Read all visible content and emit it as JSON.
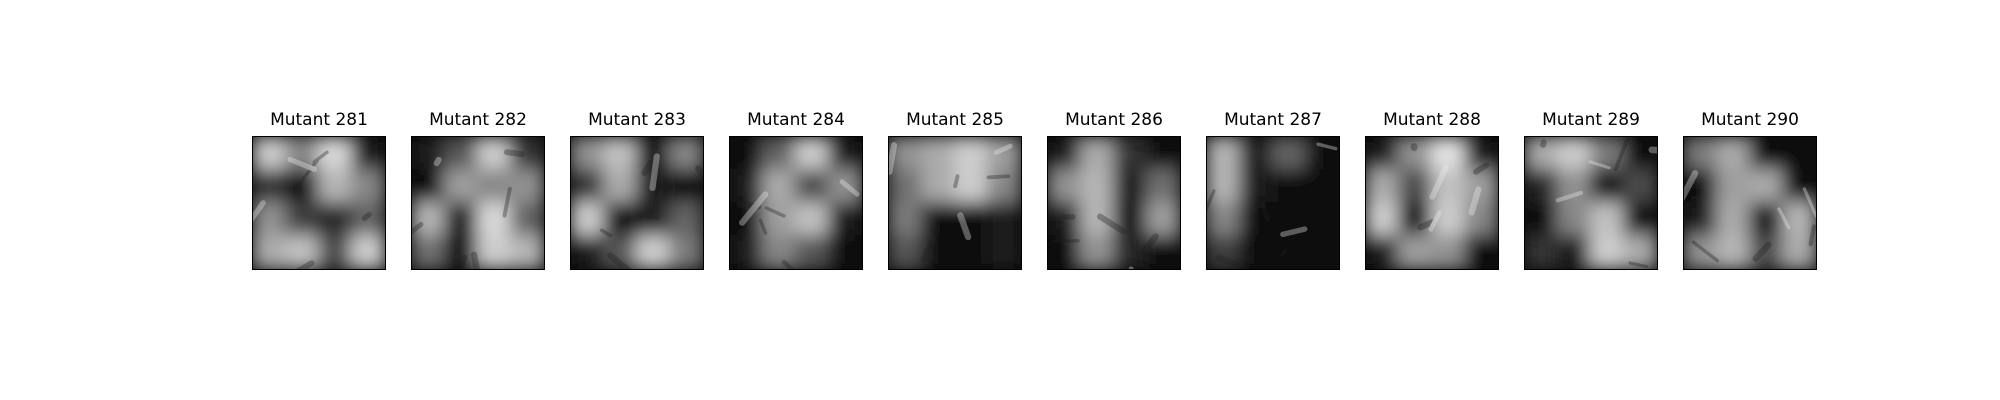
{
  "figure": {
    "panels": [
      {
        "title": "Mutant 281",
        "mask": [
          [
            0.85,
            0.55,
            0.9,
            0.1
          ],
          [
            0.2,
            0.05,
            0.75,
            0.55
          ],
          [
            0.6,
            0.25,
            0.15,
            0.4
          ],
          [
            0.7,
            0.8,
            0.3,
            0.85
          ]
        ]
      },
      {
        "title": "Mutant 282",
        "mask": [
          [
            0.1,
            0.35,
            0.85,
            0.2
          ],
          [
            0.05,
            0.65,
            0.55,
            0.6
          ],
          [
            0.75,
            0.1,
            0.9,
            0.4
          ],
          [
            0.45,
            0.05,
            0.85,
            0.75
          ]
        ]
      },
      {
        "title": "Mutant 283",
        "mask": [
          [
            0.6,
            0.8,
            0.05,
            0.55
          ],
          [
            0.2,
            0.7,
            0.1,
            0.05
          ],
          [
            0.85,
            0.05,
            0.1,
            0.4
          ],
          [
            0.1,
            0.35,
            0.85,
            0.5
          ]
        ]
      },
      {
        "title": "Mutant 284",
        "mask": [
          [
            0.05,
            0.4,
            0.85,
            0.1
          ],
          [
            0.1,
            0.7,
            0.3,
            0.6
          ],
          [
            0.05,
            0.65,
            0.8,
            0.1
          ],
          [
            0.1,
            0.55,
            0.35,
            0.05
          ]
        ]
      },
      {
        "title": "Mutant 285",
        "mask": [
          [
            0.6,
            0.7,
            0.85,
            0.65
          ],
          [
            0.45,
            0.7,
            0.85,
            0.55
          ],
          [
            0.5,
            0.05,
            0.05,
            0.1
          ],
          [
            0.35,
            0.05,
            0.05,
            0.1
          ]
        ]
      },
      {
        "title": "Mutant 286",
        "mask": [
          [
            0.1,
            0.7,
            0.2,
            0.05
          ],
          [
            0.6,
            0.75,
            0.1,
            0.45
          ],
          [
            0.1,
            0.75,
            0.05,
            0.65
          ],
          [
            0.05,
            0.6,
            0.15,
            0.05
          ]
        ]
      },
      {
        "title": "Mutant 287",
        "mask": [
          [
            0.75,
            0.1,
            0.4,
            0.05
          ],
          [
            0.75,
            0.1,
            0.05,
            0.05
          ],
          [
            0.55,
            0.05,
            0.05,
            0.05
          ],
          [
            0.25,
            0.05,
            0.05,
            0.05
          ]
        ]
      },
      {
        "title": "Mutant 288",
        "mask": [
          [
            0.1,
            0.6,
            0.95,
            0.1
          ],
          [
            0.7,
            0.3,
            0.8,
            0.65
          ],
          [
            0.85,
            0.05,
            0.85,
            0.55
          ],
          [
            0.1,
            0.65,
            0.6,
            0.05
          ]
        ]
      },
      {
        "title": "Mutant 289",
        "mask": [
          [
            0.7,
            0.85,
            0.5,
            0.05
          ],
          [
            0.15,
            0.6,
            0.05,
            0.3
          ],
          [
            0.05,
            0.55,
            0.8,
            0.05
          ],
          [
            0.2,
            0.1,
            0.85,
            0.7
          ]
        ]
      },
      {
        "title": "Mutant 290",
        "mask": [
          [
            0.5,
            0.7,
            0.05,
            0.05
          ],
          [
            0.05,
            0.65,
            0.7,
            0.05
          ],
          [
            0.1,
            0.7,
            0.05,
            0.75
          ],
          [
            0.6,
            0.75,
            0.3,
            0.7
          ]
        ]
      }
    ]
  }
}
